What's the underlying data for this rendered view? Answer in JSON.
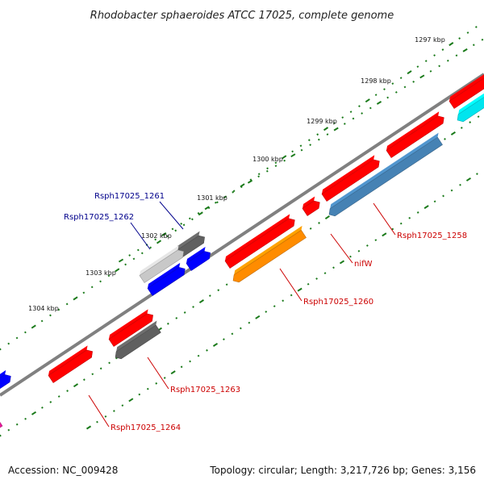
{
  "title": "Rhodobacter sphaeroides ATCC 17025, complete genome",
  "accession_text": "Accession: NC_009428",
  "topology_text": "Topology: circular; Length: 3,217,726 bp; Genes: 3,156",
  "colors": {
    "red": "#ff0000",
    "blue": "#0000ff",
    "dark_gray": "#606060",
    "light_gray": "#c8c8c8",
    "orange": "#ff8c00",
    "steel_blue": "#4682b4",
    "cyan": "#00e5ee",
    "magenta": "#e8189a",
    "backbone": "#808080",
    "tick": "#1a7a1a",
    "label_blue": "#00008b",
    "label_red": "#cc0000"
  },
  "kbp_labels": [
    "1297 kbp",
    "1298 kbp",
    "1299 kbp",
    "1300 kbp",
    "1301 kbp",
    "1302 kbp",
    "1303 kbp",
    "1304 kbp"
  ],
  "gene_labels": [
    "Rsph17025_1261",
    "Rsph17025_1262",
    "Rsph17025_1258",
    "nifW",
    "Rsph17025_1260",
    "Rsph17025_1263",
    "Rsph17025_1264"
  ],
  "genes": [
    {
      "color": "red",
      "strand": "+"
    },
    {
      "color": "red",
      "strand": "+"
    },
    {
      "color": "red",
      "strand": "+"
    },
    {
      "color": "red",
      "strand": "+"
    },
    {
      "color": "red",
      "strand": "+"
    },
    {
      "color": "red",
      "strand": "+"
    },
    {
      "color": "red",
      "strand": "+"
    },
    {
      "color": "orange",
      "strand": "-"
    },
    {
      "color": "steel_blue",
      "strand": "-"
    },
    {
      "color": "cyan",
      "strand": "-"
    },
    {
      "color": "dark_gray",
      "strand": "-"
    },
    {
      "color": "dark_gray",
      "strand": "+"
    },
    {
      "color": "light_gray",
      "strand": "+"
    },
    {
      "color": "blue",
      "strand": "+"
    },
    {
      "color": "blue",
      "strand": "+"
    },
    {
      "color": "blue",
      "strand": "+"
    },
    {
      "color": "magenta",
      "strand": "-"
    }
  ]
}
